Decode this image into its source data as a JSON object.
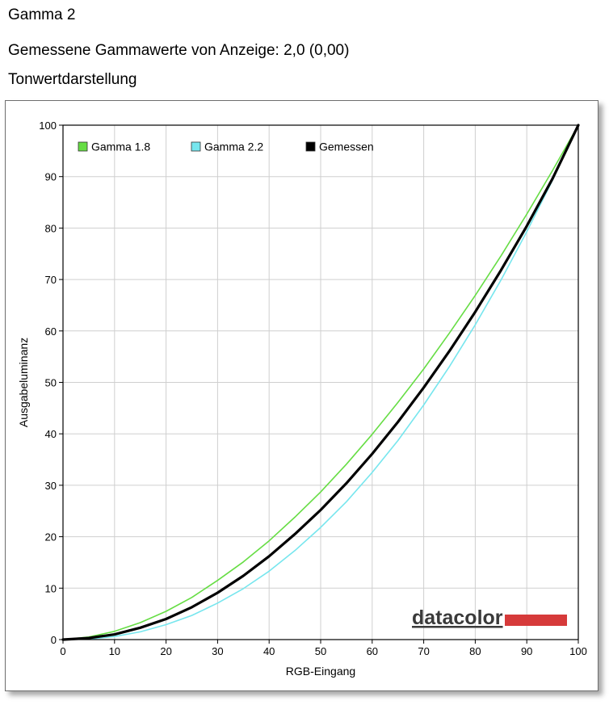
{
  "page": {
    "title": "Gamma 2",
    "measured_text": "Gemessene Gammawerte von Anzeige: 2,0 (0,00)",
    "section_title": "Tonwertdarstellung"
  },
  "brand": {
    "logo_text": "datacolor",
    "accent_color": "#d63a3a"
  },
  "chart_data": {
    "type": "line",
    "title": "",
    "xlabel": "RGB-Eingang",
    "ylabel": "Ausgabeluminanz",
    "xlim": [
      0,
      100
    ],
    "ylim": [
      0,
      100
    ],
    "x_ticks": [
      0,
      10,
      20,
      30,
      40,
      50,
      60,
      70,
      80,
      90,
      100
    ],
    "y_ticks": [
      0,
      10,
      20,
      30,
      40,
      50,
      60,
      70,
      80,
      90,
      100
    ],
    "grid": true,
    "legend_position": "top-left",
    "series": [
      {
        "name": "Gamma 1.8",
        "color": "#66dd44",
        "x": [
          0,
          5,
          10,
          15,
          20,
          25,
          30,
          35,
          40,
          45,
          50,
          55,
          60,
          65,
          70,
          75,
          80,
          85,
          90,
          95,
          100
        ],
        "y": [
          0,
          0.5,
          1.6,
          3.3,
          5.5,
          8.2,
          11.5,
          15.1,
          19.2,
          23.8,
          28.7,
          34.1,
          39.9,
          46.1,
          52.6,
          59.6,
          66.9,
          74.6,
          82.7,
          91.2,
          100
        ]
      },
      {
        "name": "Gamma 2.2",
        "color": "#77e6ee",
        "x": [
          0,
          5,
          10,
          15,
          20,
          25,
          30,
          35,
          40,
          45,
          50,
          55,
          60,
          65,
          70,
          75,
          80,
          85,
          90,
          95,
          100
        ],
        "y": [
          0,
          0.1,
          0.6,
          1.5,
          2.9,
          4.7,
          7.1,
          9.9,
          13.3,
          17.3,
          21.8,
          26.8,
          32.5,
          38.7,
          45.6,
          53.1,
          61.2,
          69.9,
          79.3,
          89.3,
          100
        ]
      },
      {
        "name": "Gemessen",
        "color": "#000000",
        "x": [
          0,
          5,
          10,
          15,
          20,
          25,
          30,
          35,
          40,
          45,
          50,
          55,
          60,
          65,
          70,
          75,
          80,
          85,
          90,
          95,
          100
        ],
        "y": [
          0,
          0.3,
          1.0,
          2.3,
          4.0,
          6.3,
          9.1,
          12.4,
          16.2,
          20.5,
          25.2,
          30.4,
          36.1,
          42.3,
          49.0,
          56.1,
          63.7,
          71.8,
          80.4,
          89.6,
          100
        ]
      }
    ]
  }
}
